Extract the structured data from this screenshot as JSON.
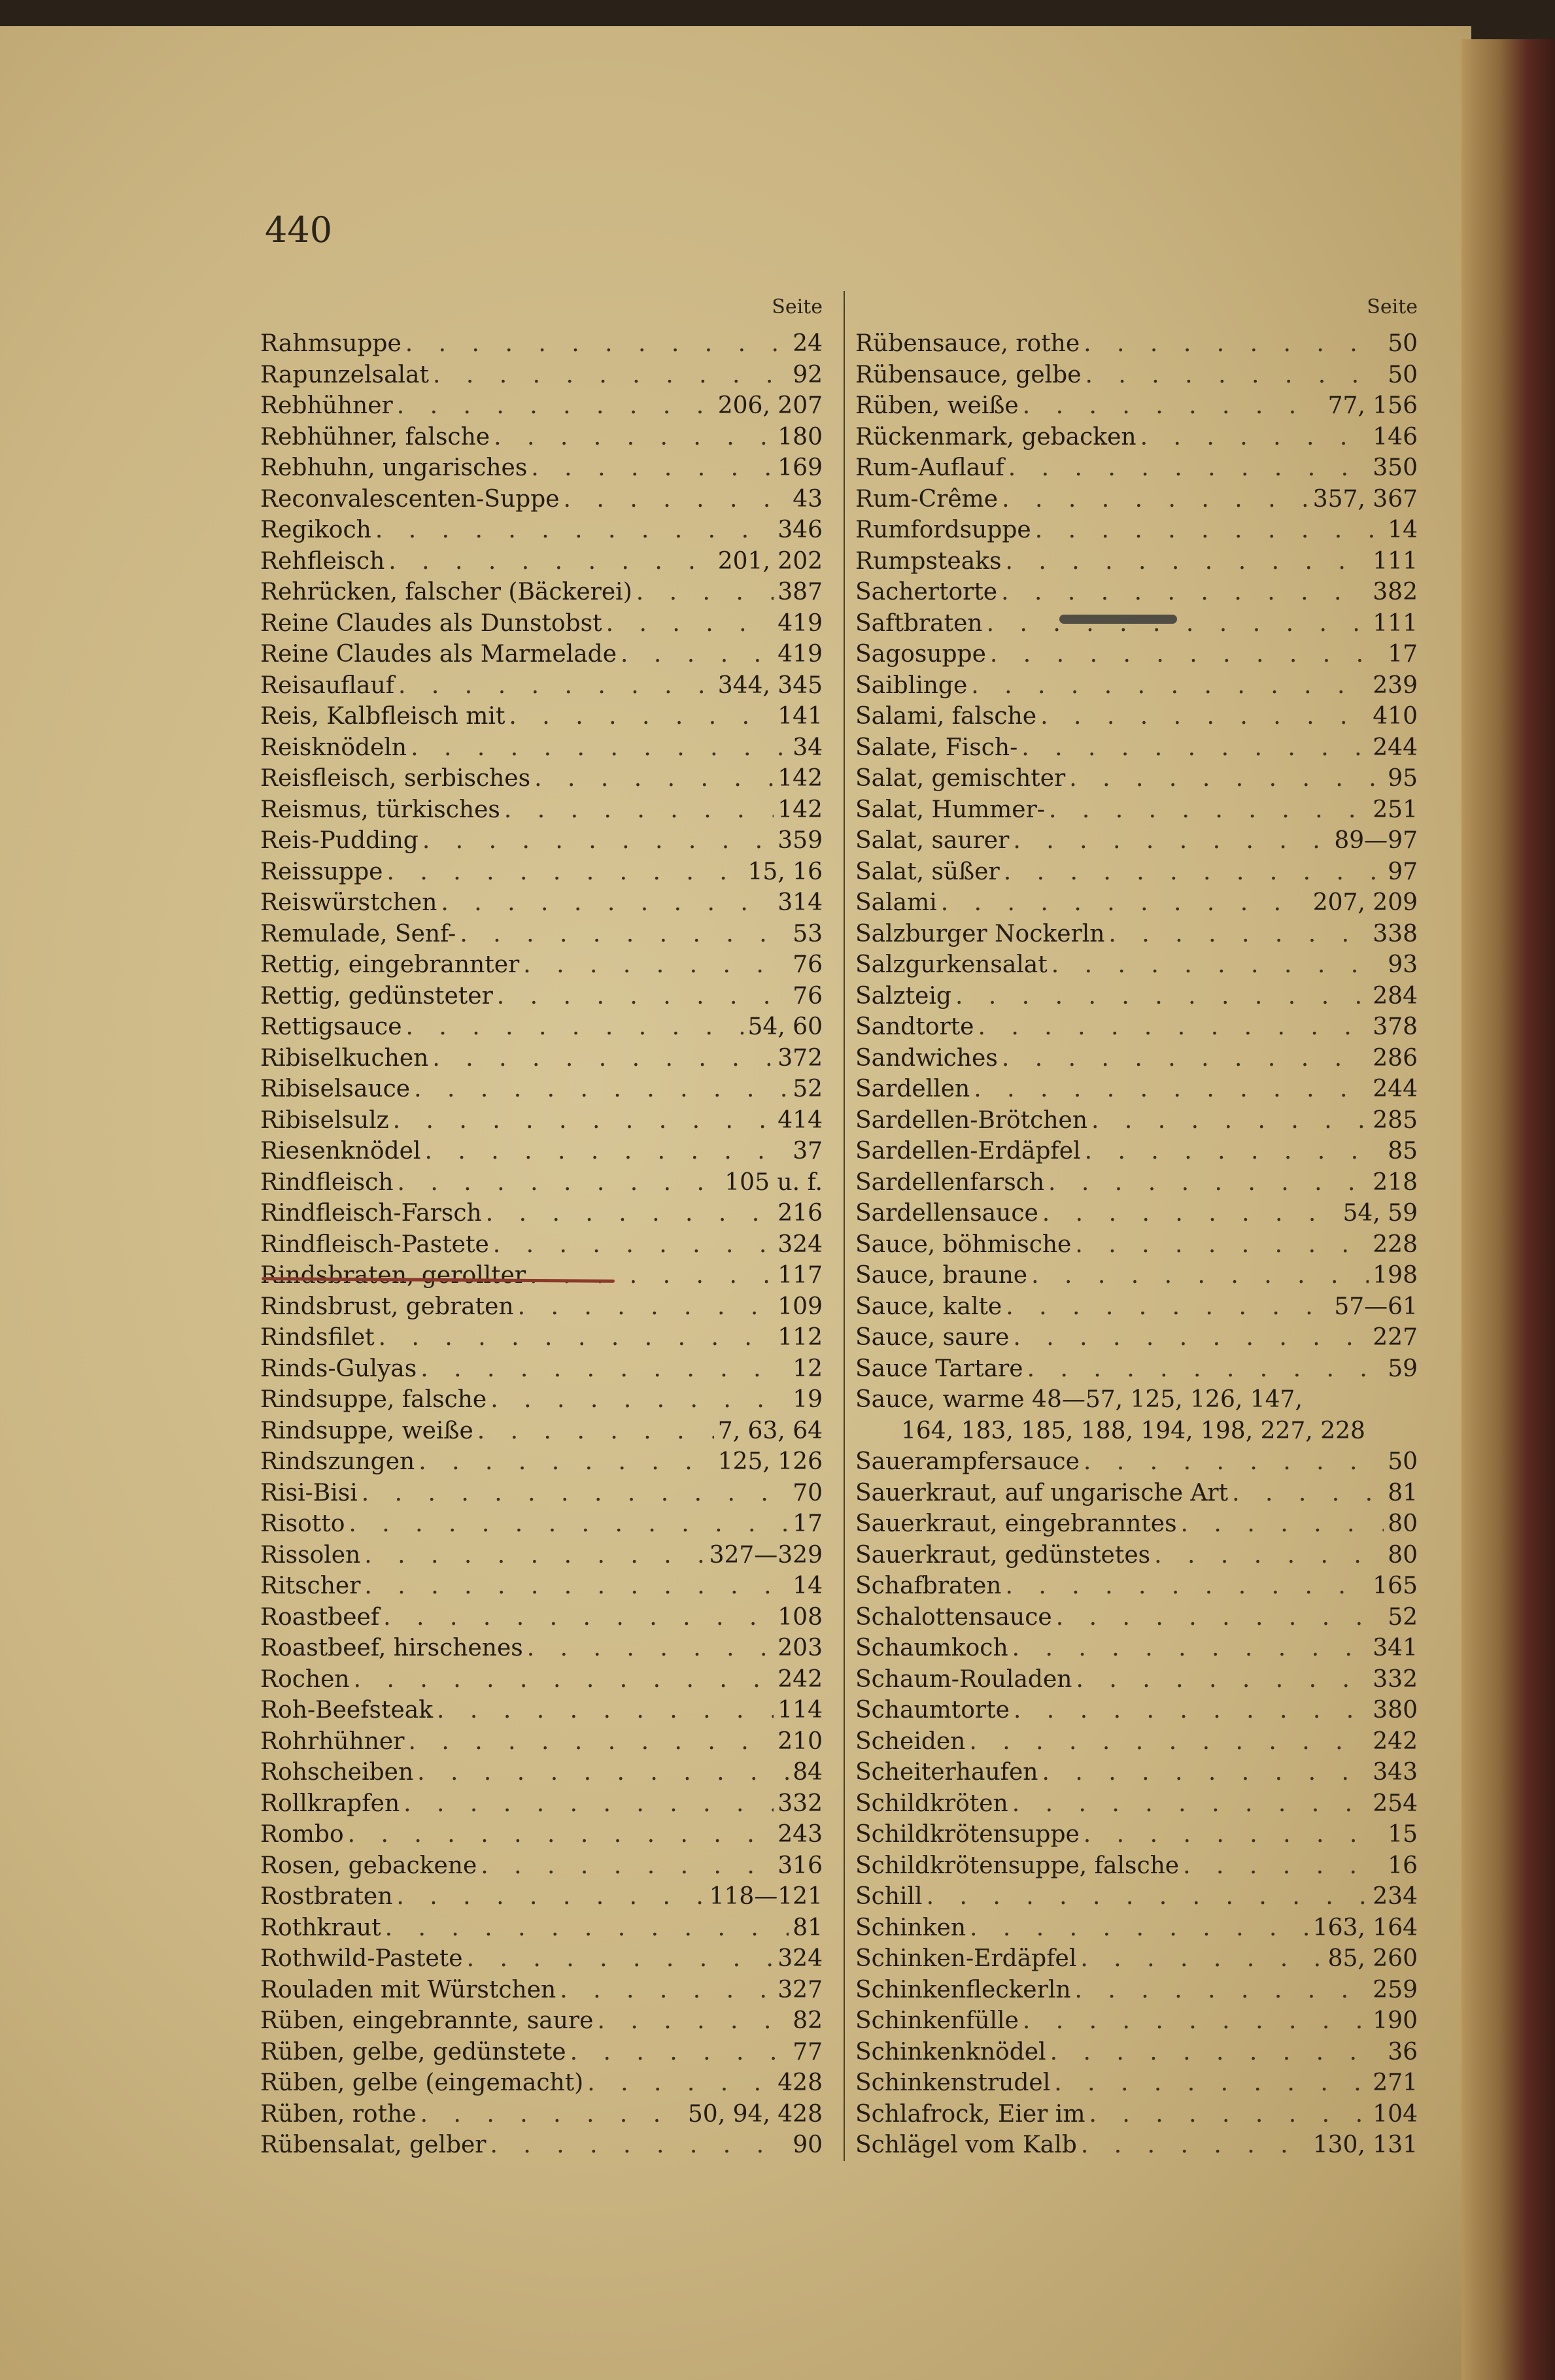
{
  "page_number": "440",
  "column_header": "Seite",
  "colors": {
    "paper": "#cbb683",
    "ink": "#231c12",
    "red_pencil": "#8a3a2a"
  },
  "left_column": [
    {
      "name": "Rahmsuppe",
      "page": "24"
    },
    {
      "name": "Rapunzelsalat",
      "page": "92"
    },
    {
      "name": "Rebhühner",
      "page": "206, 207"
    },
    {
      "name": "Rebhühner, falsche",
      "page": "180"
    },
    {
      "name": "Rebhuhn, ungarisches",
      "page": "169"
    },
    {
      "name": "Reconvalescenten-Suppe",
      "page": "43"
    },
    {
      "name": "Regikoch",
      "page": "346"
    },
    {
      "name": "Rehfleisch",
      "page": "201, 202"
    },
    {
      "name": "Rehrücken, falscher (Bäckerei)",
      "page": "387"
    },
    {
      "name": "Reine Claudes als Dunstobst",
      "page": "419"
    },
    {
      "name": "Reine Claudes als Marmelade",
      "page": "419"
    },
    {
      "name": "Reisauflauf",
      "page": "344, 345"
    },
    {
      "name": "Reis, Kalbfleisch mit",
      "page": "141"
    },
    {
      "name": "Reisknödeln",
      "page": "34"
    },
    {
      "name": "Reisfleisch, serbisches",
      "page": "142"
    },
    {
      "name": "Reismus, türkisches",
      "page": "142"
    },
    {
      "name": "Reis-Pudding",
      "page": "359"
    },
    {
      "name": "Reissuppe",
      "page": "15, 16"
    },
    {
      "name": "Reiswürstchen",
      "page": "314"
    },
    {
      "name": "Remulade, Senf-",
      "page": "53"
    },
    {
      "name": "Rettig, eingebrannter",
      "page": "76"
    },
    {
      "name": "Rettig, gedünsteter",
      "page": "76"
    },
    {
      "name": "Rettigsauce",
      "page": "54, 60"
    },
    {
      "name": "Ribiselkuchen",
      "page": "372"
    },
    {
      "name": "Ribiselsauce",
      "page": "52"
    },
    {
      "name": "Ribiselsulz",
      "page": "414"
    },
    {
      "name": "Riesenknödel",
      "page": "37"
    },
    {
      "name": "Rindfleisch",
      "page": "105 u. f."
    },
    {
      "name": "Rindfleisch-Farsch",
      "page": "216"
    },
    {
      "name": "Rindfleisch-Pastete",
      "page": "324"
    },
    {
      "name": "Rindsbraten, gerollter",
      "page": "117"
    },
    {
      "name": "Rindsbrust, gebraten",
      "page": "109"
    },
    {
      "name": "Rindsfilet",
      "page": "112"
    },
    {
      "name": "Rinds-Gulyas",
      "page": "12"
    },
    {
      "name": "Rindsuppe, falsche",
      "page": "19"
    },
    {
      "name": "Rindsuppe, weiße",
      "page": "7, 63, 64"
    },
    {
      "name": "Rindszungen",
      "page": "125, 126"
    },
    {
      "name": "Risi-Bisi",
      "page": "70"
    },
    {
      "name": "Risotto",
      "page": "17"
    },
    {
      "name": "Rissolen",
      "page": "327—329"
    },
    {
      "name": "Ritscher",
      "page": "14"
    },
    {
      "name": "Roastbeef",
      "page": "108"
    },
    {
      "name": "Roastbeef, hirschenes",
      "page": "203"
    },
    {
      "name": "Rochen",
      "page": "242"
    },
    {
      "name": "Roh-Beefsteak",
      "page": "114"
    },
    {
      "name": "Rohrhühner",
      "page": "210"
    },
    {
      "name": "Rohscheiben",
      "page": "84"
    },
    {
      "name": "Rollkrapfen",
      "page": "332"
    },
    {
      "name": "Rombo",
      "page": "243"
    },
    {
      "name": "Rosen, gebackene",
      "page": "316"
    },
    {
      "name": "Rostbraten",
      "page": "118—121"
    },
    {
      "name": "Rothkraut",
      "page": "81"
    },
    {
      "name": "Rothwild-Pastete",
      "page": "324"
    },
    {
      "name": "Rouladen mit Würstchen",
      "page": "327"
    },
    {
      "name": "Rüben, eingebrannte, saure",
      "page": "82"
    },
    {
      "name": "Rüben, gelbe, gedünstete",
      "page": "77"
    },
    {
      "name": "Rüben, gelbe (eingemacht)",
      "page": "428"
    },
    {
      "name": "Rüben, rothe",
      "page": "50, 94, 428"
    },
    {
      "name": "Rübensalat, gelber",
      "page": "90"
    }
  ],
  "right_column": [
    {
      "name": "Rübensauce, rothe",
      "page": "50"
    },
    {
      "name": "Rübensauce, gelbe",
      "page": "50"
    },
    {
      "name": "Rüben, weiße",
      "page": "77, 156"
    },
    {
      "name": "Rückenmark, gebacken",
      "page": "146"
    },
    {
      "name": "Rum-Auflauf",
      "page": "350"
    },
    {
      "name": "Rum-Crême",
      "page": "357, 367"
    },
    {
      "name": "Rumfordsuppe",
      "page": "14"
    },
    {
      "name": "Rumpsteaks",
      "page": "111"
    },
    {
      "name": "Sachertorte",
      "page": "382"
    },
    {
      "name": "Saftbraten",
      "page": "111"
    },
    {
      "name": "Sagosuppe",
      "page": "17"
    },
    {
      "name": "Saiblinge",
      "page": "239"
    },
    {
      "name": "Salami, falsche",
      "page": "410"
    },
    {
      "name": "Salate, Fisch-",
      "page": "244"
    },
    {
      "name": "Salat, gemischter",
      "page": "95"
    },
    {
      "name": "Salat, Hummer-",
      "page": "251"
    },
    {
      "name": "Salat, saurer",
      "page": "89—97"
    },
    {
      "name": "Salat, süßer",
      "page": "97"
    },
    {
      "name": "Salami",
      "page": "207, 209"
    },
    {
      "name": "Salzburger Nockerln",
      "page": "338"
    },
    {
      "name": "Salzgurkensalat",
      "page": "93"
    },
    {
      "name": "Salzteig",
      "page": "284"
    },
    {
      "name": "Sandtorte",
      "page": "378"
    },
    {
      "name": "Sandwiches",
      "page": "286"
    },
    {
      "name": "Sardellen",
      "page": "244"
    },
    {
      "name": "Sardellen-Brötchen",
      "page": "285"
    },
    {
      "name": "Sardellen-Erdäpfel",
      "page": "85"
    },
    {
      "name": "Sardellenfarsch",
      "page": "218"
    },
    {
      "name": "Sardellensauce",
      "page": "54, 59"
    },
    {
      "name": "Sauce, böhmische",
      "page": "228"
    },
    {
      "name": "Sauce, braune",
      "page": "198"
    },
    {
      "name": "Sauce, kalte",
      "page": "57—61"
    },
    {
      "name": "Sauce, saure",
      "page": "227"
    },
    {
      "name": "Sauce Tartare",
      "page": "59"
    },
    {
      "name": "Sauce, warme 48—57, 125, 126, 147,",
      "page": "",
      "nodots": true
    },
    {
      "name": "164, 183, 185, 188, 194, 198, 227, 228",
      "page": "",
      "continuation": true
    },
    {
      "name": "Sauerampfersauce",
      "page": "50"
    },
    {
      "name": "Sauerkraut, auf ungarische Art",
      "page": "81"
    },
    {
      "name": "Sauerkraut, eingebranntes",
      "page": "80"
    },
    {
      "name": "Sauerkraut, gedünstetes",
      "page": "80"
    },
    {
      "name": "Schafbraten",
      "page": "165"
    },
    {
      "name": "Schalottensauce",
      "page": "52"
    },
    {
      "name": "Schaumkoch",
      "page": "341"
    },
    {
      "name": "Schaum-Rouladen",
      "page": "332"
    },
    {
      "name": "Schaumtorte",
      "page": "380"
    },
    {
      "name": "Scheiden",
      "page": "242"
    },
    {
      "name": "Scheiterhaufen",
      "page": "343"
    },
    {
      "name": "Schildkröten",
      "page": "254"
    },
    {
      "name": "Schildkrötensuppe",
      "page": "15"
    },
    {
      "name": "Schildkrötensuppe, falsche",
      "page": "16"
    },
    {
      "name": "Schill",
      "page": "234"
    },
    {
      "name": "Schinken",
      "page": "163, 164"
    },
    {
      "name": "Schinken-Erdäpfel",
      "page": "85, 260"
    },
    {
      "name": "Schinkenfleckerln",
      "page": "259"
    },
    {
      "name": "Schinkenfülle",
      "page": "190"
    },
    {
      "name": "Schinkenknödel",
      "page": "36"
    },
    {
      "name": "Schinkenstrudel",
      "page": "271"
    },
    {
      "name": "Schlafrock, Eier im",
      "page": "104"
    },
    {
      "name": "Schlägel vom Kalb",
      "page": "130, 131"
    }
  ]
}
